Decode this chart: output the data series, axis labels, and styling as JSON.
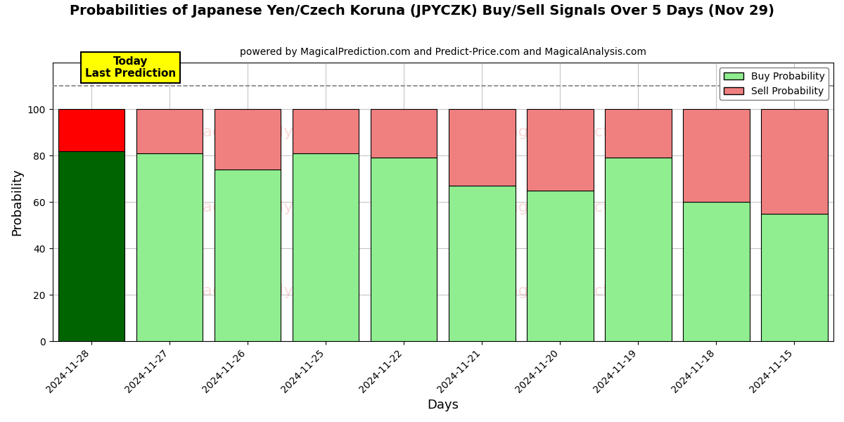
{
  "title": "Probabilities of Japanese Yen/Czech Koruna (JPYCZK) Buy/Sell Signals Over 5 Days (Nov 29)",
  "subtitle": "powered by MagicalPrediction.com and Predict-Price.com and MagicalAnalysis.com",
  "xlabel": "Days",
  "ylabel": "Probability",
  "dates": [
    "2024-11-28",
    "2024-11-27",
    "2024-11-26",
    "2024-11-25",
    "2024-11-22",
    "2024-11-21",
    "2024-11-20",
    "2024-11-19",
    "2024-11-18",
    "2024-11-15"
  ],
  "buy_values": [
    82,
    81,
    74,
    81,
    79,
    67,
    65,
    79,
    60,
    55
  ],
  "sell_values": [
    18,
    19,
    26,
    19,
    21,
    33,
    35,
    21,
    40,
    45
  ],
  "today_buy_color": "#006400",
  "today_sell_color": "#FF0000",
  "buy_color": "#90EE90",
  "sell_color": "#F08080",
  "today_annotation": "Today\nLast Prediction",
  "ylim": [
    0,
    120
  ],
  "dashed_line_y": 110,
  "watermark_color": "#F08080",
  "legend_buy_label": "Buy Probability",
  "legend_sell_label": "Sell Probability"
}
